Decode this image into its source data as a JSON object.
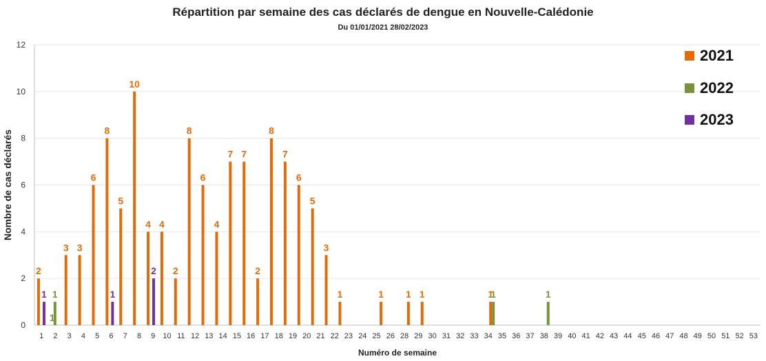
{
  "chart_data": {
    "type": "bar",
    "title": "Répartition  par semaine des cas déclarés de dengue en Nouvelle-Calédonie",
    "subtitle": "Du 01/01/2021 28/02/2023",
    "xlabel": "Numéro de semaine",
    "ylabel": "Nombre de cas déclarés",
    "ylim": [
      0,
      12
    ],
    "yticks": [
      0,
      2,
      4,
      6,
      8,
      10,
      12
    ],
    "grid": true,
    "legend_position": "top-right",
    "categories": [
      "1",
      "2",
      "3",
      "4",
      "5",
      "6",
      "7",
      "8",
      "9",
      "10",
      "11",
      "12",
      "13",
      "14",
      "15",
      "16",
      "17",
      "18",
      "19",
      "20",
      "21",
      "22",
      "23",
      "24",
      "25",
      "26",
      "27",
      "28",
      "29",
      "30",
      "31",
      "32",
      "33",
      "34",
      "35",
      "36",
      "37",
      "38",
      "39",
      "40",
      "41",
      "42",
      "43",
      "44",
      "45",
      "46",
      "47",
      "48",
      "49",
      "50",
      "51",
      "52",
      "53"
    ],
    "x_tick_labels": [
      "1",
      "2",
      "3",
      "4",
      "5",
      "6",
      "7",
      "8",
      "9",
      "10",
      "11",
      "12",
      "13",
      "14",
      "15",
      "16",
      "17",
      "18",
      "19",
      "20",
      "21",
      "22",
      "23",
      "24",
      "25",
      "26",
      "28",
      "29",
      "30",
      "31",
      "32",
      "33",
      "34",
      "35",
      "36",
      "37",
      "38",
      "39",
      "40",
      "41",
      "42",
      "43",
      "44",
      "45",
      "46",
      "47",
      "48",
      "49",
      "50",
      "51",
      "52",
      "53"
    ],
    "series": [
      {
        "name": "2021",
        "color": "#E36C09",
        "values": [
          2,
          0,
          3,
          3,
          6,
          8,
          5,
          10,
          4,
          4,
          2,
          8,
          6,
          4,
          7,
          7,
          2,
          8,
          7,
          6,
          5,
          3,
          1,
          0,
          0,
          1,
          0,
          1,
          1,
          0,
          0,
          0,
          0,
          1,
          0,
          0,
          0,
          0,
          0,
          0,
          0,
          0,
          0,
          0,
          0,
          0,
          0,
          0,
          0,
          0,
          0,
          0,
          0
        ]
      },
      {
        "name": "2022",
        "color": "#77933C",
        "values": [
          0,
          1,
          0,
          0,
          0,
          0,
          0,
          0,
          0,
          0,
          0,
          0,
          0,
          0,
          0,
          0,
          0,
          0,
          0,
          0,
          0,
          0,
          0,
          0,
          0,
          0,
          0,
          0,
          0,
          0,
          0,
          0,
          0,
          1,
          0,
          0,
          0,
          1,
          0,
          0,
          0,
          0,
          0,
          0,
          0,
          0,
          0,
          0,
          0,
          0,
          0,
          0,
          0
        ]
      },
      {
        "name": "2023",
        "color": "#7030A0",
        "values": [
          1,
          0,
          0,
          0,
          0,
          1,
          0,
          0,
          2,
          0,
          0,
          0,
          0,
          0,
          0,
          0,
          0,
          0,
          0,
          0,
          0,
          0,
          0,
          0,
          0,
          0,
          0,
          0,
          0,
          0,
          0,
          0,
          0,
          0,
          0,
          0,
          0,
          0,
          0,
          0,
          0,
          0,
          0,
          0,
          0,
          0,
          0,
          0,
          0,
          0,
          0,
          0,
          0
        ]
      }
    ],
    "data_labels": [
      {
        "series": 0,
        "index": 0,
        "text": "2"
      },
      {
        "series": 2,
        "index": 0,
        "text": "1"
      },
      {
        "series": 0,
        "index": 1,
        "text": "1",
        "text_series": 1
      },
      {
        "series": 1,
        "index": 1,
        "text": "1"
      },
      {
        "series": 0,
        "index": 2,
        "text": "3"
      },
      {
        "series": 0,
        "index": 3,
        "text": "3"
      },
      {
        "series": 0,
        "index": 4,
        "text": "6"
      },
      {
        "series": 0,
        "index": 5,
        "text": "8"
      },
      {
        "series": 2,
        "index": 5,
        "text": "1"
      },
      {
        "series": 0,
        "index": 6,
        "text": "5"
      },
      {
        "series": 0,
        "index": 7,
        "text": "10"
      },
      {
        "series": 0,
        "index": 8,
        "text": "4"
      },
      {
        "series": 2,
        "index": 8,
        "text": "2"
      },
      {
        "series": 0,
        "index": 9,
        "text": "4"
      },
      {
        "series": 0,
        "index": 10,
        "text": "2"
      },
      {
        "series": 0,
        "index": 11,
        "text": "8"
      },
      {
        "series": 0,
        "index": 12,
        "text": "6"
      },
      {
        "series": 0,
        "index": 13,
        "text": "4"
      },
      {
        "series": 0,
        "index": 14,
        "text": "7"
      },
      {
        "series": 0,
        "index": 15,
        "text": "7"
      },
      {
        "series": 0,
        "index": 16,
        "text": "2"
      },
      {
        "series": 0,
        "index": 17,
        "text": "8"
      },
      {
        "series": 0,
        "index": 18,
        "text": "7"
      },
      {
        "series": 0,
        "index": 19,
        "text": "6"
      },
      {
        "series": 0,
        "index": 20,
        "text": "5"
      },
      {
        "series": 0,
        "index": 21,
        "text": "3"
      },
      {
        "series": 0,
        "index": 22,
        "text": "1"
      },
      {
        "series": 0,
        "index": 25,
        "text": "1"
      },
      {
        "series": 0,
        "index": 27,
        "text": "1"
      },
      {
        "series": 0,
        "index": 28,
        "text": "1"
      },
      {
        "series": 0,
        "index": 33,
        "text": "1"
      },
      {
        "series": 1,
        "index": 33,
        "text": "1"
      },
      {
        "series": 1,
        "index": 37,
        "text": "1"
      }
    ]
  }
}
